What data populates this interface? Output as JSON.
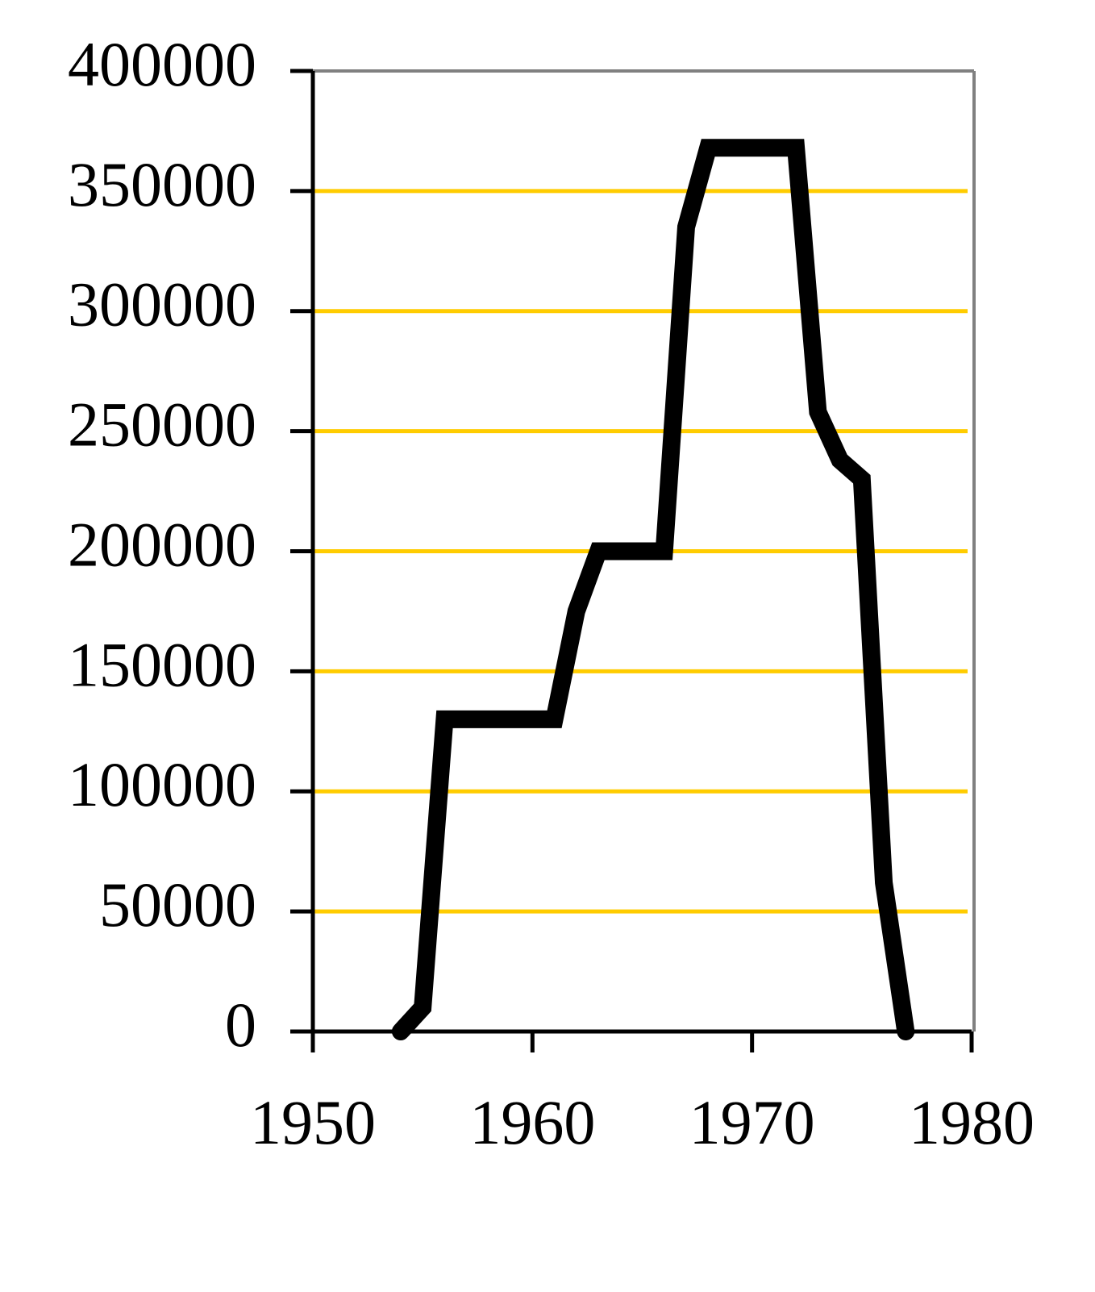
{
  "chart_data": {
    "type": "line",
    "x": [
      1954,
      1955,
      1956,
      1961,
      1962,
      1963,
      1966,
      1967,
      1968,
      1972,
      1973,
      1974,
      1975,
      1976,
      1977
    ],
    "series": [
      {
        "color": "#000000",
        "values": [
          0,
          10000,
          130000,
          130000,
          175000,
          200000,
          200000,
          335000,
          368000,
          368000,
          258000,
          238000,
          230000,
          62000,
          0
        ]
      }
    ],
    "xlim": [
      1950,
      1980
    ],
    "xticks": [
      1950,
      1960,
      1970,
      1980
    ],
    "ylim": [
      0,
      400000
    ],
    "yticks": [
      0,
      50000,
      100000,
      150000,
      200000,
      250000,
      300000,
      350000,
      400000
    ],
    "grid": true,
    "grid_color": "#ffcc00"
  }
}
